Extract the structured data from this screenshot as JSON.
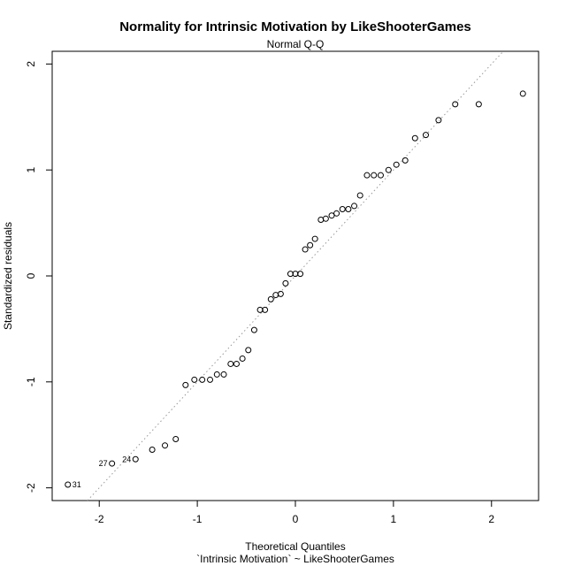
{
  "chart_data": {
    "type": "scatter",
    "title": "Normality for Intrinsic Motivation by LikeShooterGames",
    "subtitle": "Normal Q-Q",
    "xlabel": "Theoretical Quantiles",
    "xlabel2": "`Intrinsic Motivation` ~ LikeShooterGames",
    "ylabel": "Standardized residuals",
    "xlim": [
      -2.48,
      2.48
    ],
    "ylim": [
      -2.12,
      2.12
    ],
    "x_ticks": [
      -2,
      -1,
      0,
      1,
      2
    ],
    "y_ticks": [
      -2,
      -1,
      0,
      1,
      2
    ],
    "reference_line": {
      "intercept": 0.0,
      "slope": 1.0,
      "style": "dotted"
    },
    "points": [
      {
        "x": -2.32,
        "y": -1.97,
        "label": "31"
      },
      {
        "x": -1.87,
        "y": -1.77,
        "label": "27"
      },
      {
        "x": -1.63,
        "y": -1.73,
        "label": "24"
      },
      {
        "x": -1.46,
        "y": -1.64
      },
      {
        "x": -1.33,
        "y": -1.6
      },
      {
        "x": -1.22,
        "y": -1.54
      },
      {
        "x": -1.12,
        "y": -1.03
      },
      {
        "x": -1.03,
        "y": -0.98
      },
      {
        "x": -0.95,
        "y": -0.98
      },
      {
        "x": -0.87,
        "y": -0.98
      },
      {
        "x": -0.8,
        "y": -0.93
      },
      {
        "x": -0.73,
        "y": -0.93
      },
      {
        "x": -0.66,
        "y": -0.83
      },
      {
        "x": -0.6,
        "y": -0.83
      },
      {
        "x": -0.54,
        "y": -0.78
      },
      {
        "x": -0.48,
        "y": -0.7
      },
      {
        "x": -0.42,
        "y": -0.51
      },
      {
        "x": -0.36,
        "y": -0.32
      },
      {
        "x": -0.31,
        "y": -0.32
      },
      {
        "x": -0.25,
        "y": -0.22
      },
      {
        "x": -0.2,
        "y": -0.18
      },
      {
        "x": -0.15,
        "y": -0.17
      },
      {
        "x": -0.1,
        "y": -0.07
      },
      {
        "x": -0.05,
        "y": 0.02
      },
      {
        "x": 0.0,
        "y": 0.02
      },
      {
        "x": 0.05,
        "y": 0.02
      },
      {
        "x": 0.1,
        "y": 0.25
      },
      {
        "x": 0.15,
        "y": 0.29
      },
      {
        "x": 0.2,
        "y": 0.35
      },
      {
        "x": 0.26,
        "y": 0.53
      },
      {
        "x": 0.31,
        "y": 0.54
      },
      {
        "x": 0.37,
        "y": 0.57
      },
      {
        "x": 0.42,
        "y": 0.59
      },
      {
        "x": 0.48,
        "y": 0.63
      },
      {
        "x": 0.54,
        "y": 0.63
      },
      {
        "x": 0.6,
        "y": 0.66
      },
      {
        "x": 0.66,
        "y": 0.76
      },
      {
        "x": 0.73,
        "y": 0.95
      },
      {
        "x": 0.8,
        "y": 0.95
      },
      {
        "x": 0.87,
        "y": 0.95
      },
      {
        "x": 0.95,
        "y": 1.0
      },
      {
        "x": 1.03,
        "y": 1.05
      },
      {
        "x": 1.12,
        "y": 1.09
      },
      {
        "x": 1.22,
        "y": 1.3
      },
      {
        "x": 1.33,
        "y": 1.33
      },
      {
        "x": 1.46,
        "y": 1.47
      },
      {
        "x": 1.63,
        "y": 1.62
      },
      {
        "x": 1.87,
        "y": 1.62
      },
      {
        "x": 2.32,
        "y": 1.72
      }
    ]
  },
  "colors": {
    "points": "#000000",
    "reference_line": "#999999",
    "axes": "#000000",
    "background": "#ffffff"
  }
}
